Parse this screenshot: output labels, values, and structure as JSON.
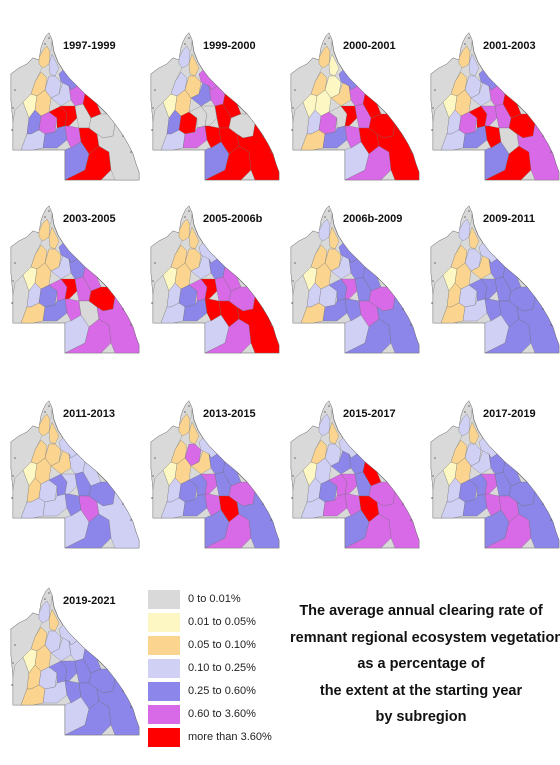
{
  "legend": {
    "classes": [
      {
        "label": "0 to 0.01%",
        "color": "#d9d9d9"
      },
      {
        "label": "0.01 to 0.05%",
        "color": "#fdf7c3"
      },
      {
        "label": "0.05 to 0.10%",
        "color": "#fbd58f"
      },
      {
        "label": "0.10 to 0.25%",
        "color": "#d0d0f5"
      },
      {
        "label": "0.25 to 0.60%",
        "color": "#8c86ea"
      },
      {
        "label": "0.60 to 3.60%",
        "color": "#d86ae8"
      },
      {
        "label": "more than 3.60%",
        "color": "#ff0000"
      }
    ]
  },
  "caption": {
    "lines": [
      "The average annual clearing rate of",
      "remnant regional ecosystem vegetation",
      "as a percentage of",
      "the extent at the starting year",
      "by subregion"
    ]
  },
  "colors": {
    "map_outline": "#555555",
    "none_class": "#d9d9d9"
  },
  "maps": [
    {
      "period": "1997-1999",
      "classes": [
        2,
        3,
        2,
        3,
        1,
        2,
        3,
        4,
        5,
        6,
        4,
        5,
        6,
        6,
        7,
        3,
        4,
        5,
        6,
        7,
        4,
        6,
        7
      ]
    },
    {
      "period": "1999-2000",
      "classes": [
        3,
        2,
        3,
        2,
        1,
        2,
        4,
        5,
        5,
        6,
        4,
        6,
        7,
        7,
        6,
        3,
        5,
        6,
        6,
        7,
        4,
        6,
        6
      ]
    },
    {
      "period": "2000-2001",
      "classes": [
        2,
        1,
        2,
        1,
        1,
        1,
        2,
        4,
        5,
        6,
        3,
        5,
        7,
        6,
        5,
        2,
        4,
        5,
        6,
        6,
        3,
        5,
        6
      ]
    },
    {
      "period": "2001-2003",
      "classes": [
        2,
        3,
        2,
        3,
        1,
        2,
        3,
        4,
        5,
        6,
        3,
        5,
        6,
        5,
        5,
        3,
        4,
        6,
        7,
        6,
        4,
        6,
        5
      ]
    },
    {
      "period": "2003-2005",
      "classes": [
        2,
        2,
        2,
        2,
        1,
        2,
        3,
        4,
        4,
        5,
        3,
        4,
        5,
        6,
        5,
        2,
        4,
        5,
        7,
        6,
        3,
        5,
        5
      ]
    },
    {
      "period": "2005-2006b",
      "classes": [
        2,
        2,
        2,
        2,
        1,
        2,
        3,
        3,
        4,
        5,
        3,
        4,
        5,
        6,
        5,
        3,
        4,
        6,
        6,
        5,
        3,
        5,
        6
      ]
    },
    {
      "period": "2006b-2009",
      "classes": [
        3,
        2,
        2,
        2,
        1,
        2,
        3,
        4,
        4,
        4,
        3,
        3,
        4,
        5,
        4,
        2,
        4,
        4,
        5,
        5,
        3,
        4,
        4
      ]
    },
    {
      "period": "2009-2011",
      "classes": [
        3,
        2,
        2,
        3,
        1,
        2,
        2,
        3,
        4,
        4,
        2,
        3,
        4,
        4,
        4,
        2,
        3,
        4,
        4,
        4,
        3,
        4,
        4
      ]
    },
    {
      "period": "2011-2013",
      "classes": [
        2,
        2,
        2,
        2,
        1,
        2,
        2,
        3,
        3,
        3,
        2,
        3,
        4,
        3,
        4,
        3,
        3,
        4,
        5,
        4,
        3,
        4,
        3
      ]
    },
    {
      "period": "2013-2015",
      "classes": [
        2,
        2,
        2,
        5,
        1,
        2,
        2,
        3,
        4,
        4,
        3,
        4,
        4,
        5,
        4,
        3,
        4,
        5,
        6,
        5,
        4,
        5,
        4
      ]
    },
    {
      "period": "2015-2017",
      "classes": [
        3,
        2,
        2,
        3,
        1,
        3,
        4,
        3,
        4,
        6,
        3,
        4,
        5,
        5,
        4,
        3,
        5,
        5,
        6,
        5,
        4,
        5,
        5
      ]
    },
    {
      "period": "2017-2019",
      "classes": [
        3,
        2,
        2,
        3,
        1,
        2,
        3,
        3,
        4,
        4,
        3,
        4,
        4,
        5,
        4,
        3,
        4,
        5,
        5,
        4,
        4,
        5,
        4
      ]
    },
    {
      "period": "2019-2021",
      "classes": [
        3,
        2,
        2,
        3,
        1,
        2,
        3,
        3,
        3,
        4,
        2,
        3,
        4,
        4,
        4,
        2,
        3,
        4,
        4,
        4,
        3,
        4,
        4
      ]
    }
  ]
}
